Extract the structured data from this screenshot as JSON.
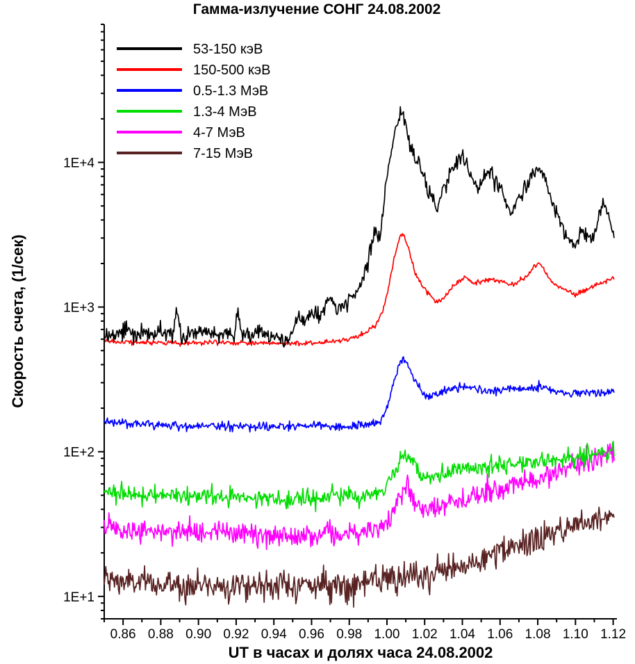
{
  "chart_data": {
    "type": "line",
    "title": "Гамма-излучение СОНГ 24.08.2002",
    "xlabel": "UT в часах и долях часа 24.08.2002",
    "ylabel": "Скорость счета,  (1/сек)",
    "yscale": "log",
    "grid": false,
    "legend_position": "top-left-inside",
    "xlim": [
      0.85,
      1.122
    ],
    "ylim": [
      7,
      90000
    ],
    "xticks": {
      "major": [
        0.86,
        0.88,
        0.9,
        0.92,
        0.94,
        0.96,
        0.98,
        1.0,
        1.02,
        1.04,
        1.06,
        1.08,
        1.1,
        1.12
      ],
      "labels": [
        "0.86",
        "0.88",
        "0.90",
        "0.92",
        "0.94",
        "0.96",
        "0.98",
        "1.00",
        "1.02",
        "1.04",
        "1.06",
        "1.08",
        "1.10",
        "1.12"
      ],
      "minor_step": 0.01
    },
    "yticks": {
      "major": [
        10,
        100,
        1000,
        10000
      ],
      "labels": [
        "1E+1",
        "1E+2",
        "1E+3",
        "1E+4"
      ]
    },
    "series": [
      {
        "name": "7-15 МэВ",
        "color": "#582222",
        "noise_sigma": 0.05,
        "x": [
          0.85,
          0.88,
          0.91,
          0.94,
          0.96,
          0.98,
          1.0,
          1.01,
          1.02,
          1.03,
          1.04,
          1.05,
          1.06,
          1.07,
          1.08,
          1.09,
          1.1,
          1.11,
          1.12
        ],
        "values": [
          13,
          12,
          12,
          12,
          12,
          12,
          13,
          13,
          14,
          15,
          16,
          18,
          20,
          22,
          25,
          28,
          31,
          35,
          38
        ]
      },
      {
        "name": "4-7 МэВ",
        "color": "#ff00ff",
        "noise_sigma": 0.04,
        "x": [
          0.85,
          0.88,
          0.91,
          0.93,
          0.95,
          0.97,
          0.985,
          0.995,
          1.0,
          1.004,
          1.008,
          1.011,
          1.014,
          1.018,
          1.022,
          1.03,
          1.04,
          1.05,
          1.06,
          1.07,
          1.08,
          1.09,
          1.1,
          1.11,
          1.12
        ],
        "values": [
          30,
          28,
          28,
          27,
          26,
          27,
          28,
          30,
          33,
          40,
          52,
          55,
          46,
          41,
          40,
          43,
          46,
          50,
          55,
          60,
          66,
          73,
          80,
          90,
          100
        ]
      },
      {
        "name": "1.3-4 МэВ",
        "color": "#00dd00",
        "noise_sigma": 0.03,
        "x": [
          0.85,
          0.88,
          0.91,
          0.94,
          0.96,
          0.98,
          0.992,
          0.998,
          1.002,
          1.006,
          1.009,
          1.012,
          1.015,
          1.018,
          1.022,
          1.026,
          1.03,
          1.04,
          1.05,
          1.06,
          1.07,
          1.08,
          1.09,
          1.1,
          1.11,
          1.12
        ],
        "values": [
          52,
          50,
          49,
          47,
          48,
          50,
          50,
          54,
          62,
          80,
          97,
          90,
          78,
          68,
          65,
          70,
          72,
          76,
          78,
          80,
          83,
          86,
          88,
          91,
          95,
          100
        ]
      },
      {
        "name": "0.5-1.3 МэВ",
        "color": "#0000ff",
        "noise_sigma": 0.014,
        "x": [
          0.85,
          0.88,
          0.91,
          0.94,
          0.96,
          0.98,
          0.99,
          0.996,
          1.0,
          1.003,
          1.006,
          1.008,
          1.01,
          1.013,
          1.016,
          1.019,
          1.022,
          1.026,
          1.03,
          1.035,
          1.04,
          1.045,
          1.05,
          1.055,
          1.06,
          1.065,
          1.07,
          1.075,
          1.08,
          1.085,
          1.09,
          1.095,
          1.1,
          1.105,
          1.11,
          1.115,
          1.12
        ],
        "values": [
          160,
          152,
          150,
          148,
          152,
          148,
          152,
          160,
          200,
          280,
          390,
          440,
          420,
          350,
          290,
          255,
          240,
          250,
          262,
          272,
          285,
          278,
          268,
          262,
          266,
          272,
          270,
          268,
          280,
          272,
          258,
          252,
          258,
          254,
          260,
          252,
          258
        ]
      },
      {
        "name": "150-500 кэВ",
        "color": "#ff0000",
        "noise_sigma": 0.008,
        "x": [
          0.85,
          0.87,
          0.89,
          0.91,
          0.93,
          0.95,
          0.96,
          0.97,
          0.978,
          0.984,
          0.99,
          0.994,
          0.998,
          1.001,
          1.004,
          1.007,
          1.009,
          1.012,
          1.015,
          1.018,
          1.022,
          1.026,
          1.03,
          1.034,
          1.038,
          1.042,
          1.046,
          1.05,
          1.055,
          1.06,
          1.065,
          1.07,
          1.074,
          1.078,
          1.081,
          1.084,
          1.088,
          1.092,
          1.096,
          1.1,
          1.105,
          1.11,
          1.115,
          1.12
        ],
        "values": [
          580,
          570,
          565,
          570,
          565,
          560,
          565,
          575,
          590,
          620,
          680,
          760,
          950,
          1400,
          2200,
          3100,
          3200,
          2400,
          1700,
          1450,
          1250,
          1080,
          1150,
          1350,
          1500,
          1600,
          1450,
          1500,
          1550,
          1500,
          1430,
          1500,
          1600,
          1900,
          2000,
          1750,
          1450,
          1350,
          1280,
          1220,
          1300,
          1400,
          1500,
          1580
        ]
      },
      {
        "name": "53-150 кэВ",
        "color": "#000000",
        "noise_sigma": 0.028,
        "x": [
          0.85,
          0.856,
          0.862,
          0.868,
          0.874,
          0.88,
          0.886,
          0.889,
          0.891,
          0.896,
          0.902,
          0.908,
          0.914,
          0.919,
          0.921,
          0.923,
          0.928,
          0.934,
          0.938,
          0.941,
          0.944,
          0.948,
          0.952,
          0.956,
          0.96,
          0.964,
          0.968,
          0.971,
          0.974,
          0.977,
          0.98,
          0.983,
          0.986,
          0.989,
          0.992,
          0.994,
          0.996,
          0.998,
          1.0,
          1.002,
          1.004,
          1.006,
          1.008,
          1.01,
          1.012,
          1.015,
          1.018,
          1.021,
          1.024,
          1.027,
          1.03,
          1.033,
          1.036,
          1.04,
          1.043,
          1.046,
          1.049,
          1.052,
          1.055,
          1.058,
          1.061,
          1.064,
          1.067,
          1.07,
          1.073,
          1.076,
          1.079,
          1.082,
          1.085,
          1.088,
          1.091,
          1.094,
          1.097,
          1.1,
          1.103,
          1.106,
          1.109,
          1.112,
          1.115,
          1.118,
          1.12
        ],
        "values": [
          650,
          640,
          700,
          640,
          650,
          660,
          640,
          950,
          640,
          650,
          660,
          640,
          650,
          640,
          950,
          640,
          630,
          700,
          620,
          640,
          600,
          580,
          850,
          780,
          950,
          860,
          1050,
          1150,
          950,
          1000,
          1150,
          1250,
          1400,
          1800,
          2800,
          3300,
          3000,
          4500,
          8000,
          12000,
          16000,
          20000,
          22000,
          19000,
          13000,
          10500,
          9500,
          7000,
          5200,
          4800,
          6500,
          8000,
          9500,
          11000,
          9000,
          7500,
          6800,
          7800,
          8600,
          7200,
          6600,
          5000,
          4600,
          5800,
          6600,
          7400,
          8800,
          9200,
          7000,
          5200,
          4200,
          3300,
          2800,
          2700,
          3400,
          3100,
          2900,
          4200,
          5200,
          4300,
          3100
        ]
      }
    ],
    "legend_order": [
      "53-150 кэВ",
      "150-500 кэВ",
      "0.5-1.3 МэВ",
      "1.3-4 МэВ",
      "4-7 МэВ",
      "7-15 МэВ"
    ]
  }
}
